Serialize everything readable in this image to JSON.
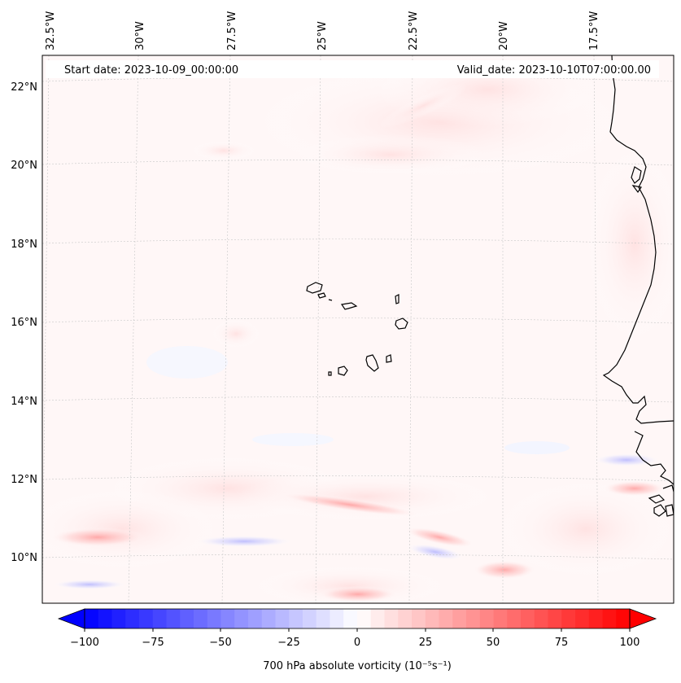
{
  "map": {
    "start_date_text": "Start date: 2023-10-09_00:00:00",
    "valid_date_text": "Valid_date: 2023-10-10T07:00:00.00",
    "lon_labels": [
      "32.5°W",
      "30°W",
      "27.5°W",
      "25°W",
      "22.5°W",
      "20°W",
      "17.5°W"
    ],
    "lat_labels": [
      "22°N",
      "20°N",
      "18°N",
      "16°N",
      "14°N",
      "12°N",
      "10°N"
    ],
    "field": "700 hPa absolute vorticity",
    "features": [
      "cape-verde-islands",
      "west-africa-coastline"
    ]
  },
  "colorbar": {
    "label": "700 hPa absolute vorticity (10⁻⁵s⁻¹)",
    "ticks": [
      "−100",
      "−75",
      "−50",
      "−25",
      "0",
      "25",
      "50",
      "75",
      "100"
    ],
    "min": -100,
    "max": 100,
    "extend": "both",
    "cmap": "bwr",
    "colors": {
      "low": "#0000ff",
      "mid": "#ffffff",
      "high": "#ff0000"
    }
  },
  "style": {
    "coast": "#000000",
    "grid": "#c8c8c8"
  }
}
